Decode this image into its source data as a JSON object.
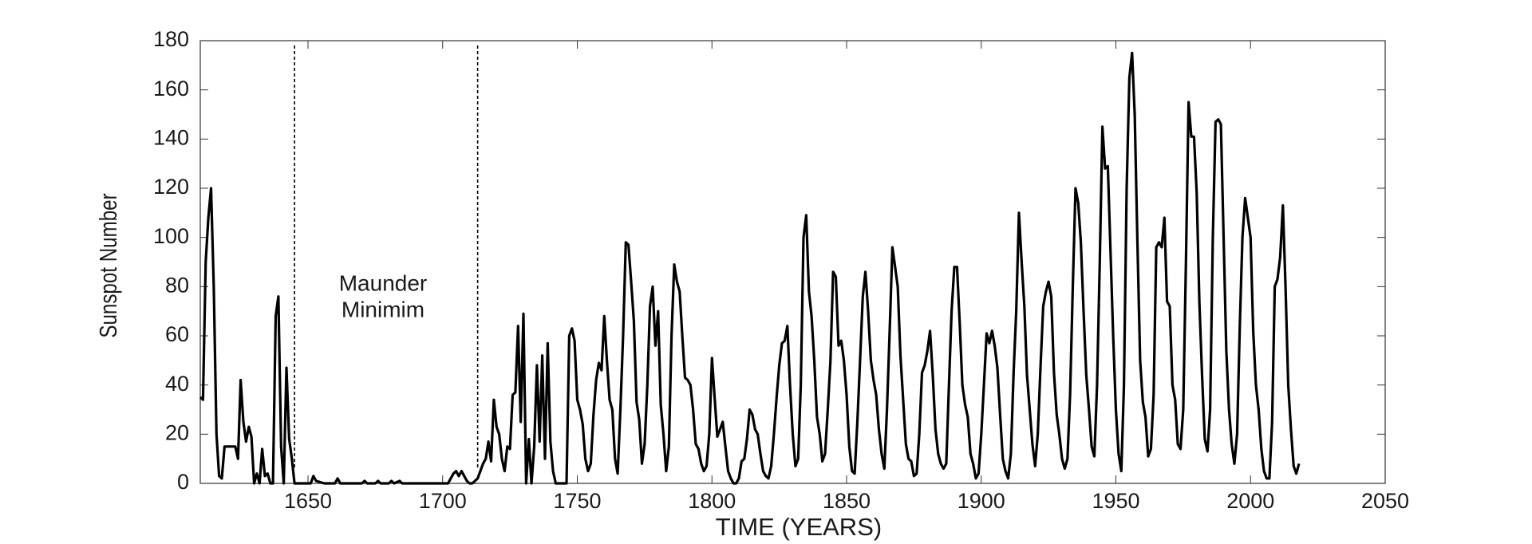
{
  "chart_data": {
    "type": "line",
    "ylabel": "Sunspot Number",
    "xlabel": "TIME (YEARS)",
    "annotation": [
      "Maunder",
      "Minimim"
    ],
    "xlim": [
      1610,
      2050
    ],
    "xticks": [
      1650,
      1700,
      1750,
      1800,
      1850,
      1900,
      1950,
      2000,
      2050
    ],
    "ylim": [
      0,
      180
    ],
    "yticks": [
      0,
      20,
      40,
      60,
      80,
      100,
      120,
      140,
      160,
      180
    ],
    "vlines": [
      1645,
      1713
    ],
    "x": [
      1610,
      1611,
      1612,
      1613,
      1614,
      1615,
      1616,
      1617,
      1618,
      1619,
      1620,
      1621,
      1622,
      1623,
      1624,
      1625,
      1626,
      1627,
      1628,
      1629,
      1630,
      1631,
      1632,
      1633,
      1634,
      1635,
      1636,
      1637,
      1638,
      1639,
      1640,
      1641,
      1642,
      1643,
      1644,
      1645,
      1650,
      1651,
      1652,
      1653,
      1656,
      1660,
      1661,
      1662,
      1670,
      1671,
      1672,
      1675,
      1676,
      1677,
      1680,
      1681,
      1682,
      1684,
      1685,
      1690,
      1700,
      1702,
      1703,
      1704,
      1705,
      1706,
      1707,
      1708,
      1709,
      1710,
      1711,
      1712,
      1713,
      1714,
      1715,
      1716,
      1717,
      1718,
      1719,
      1720,
      1721,
      1722,
      1723,
      1724,
      1725,
      1726,
      1727,
      1728,
      1729,
      1730,
      1731,
      1732,
      1733,
      1734,
      1735,
      1736,
      1737,
      1738,
      1739,
      1740,
      1741,
      1742,
      1743,
      1744,
      1745,
      1746,
      1747,
      1748,
      1749,
      1750,
      1751,
      1752,
      1753,
      1754,
      1755,
      1756,
      1757,
      1758,
      1759,
      1760,
      1761,
      1762,
      1763,
      1764,
      1765,
      1766,
      1767,
      1768,
      1769,
      1770,
      1771,
      1772,
      1773,
      1774,
      1775,
      1776,
      1777,
      1778,
      1779,
      1780,
      1781,
      1782,
      1783,
      1784,
      1785,
      1786,
      1787,
      1788,
      1789,
      1790,
      1791,
      1792,
      1793,
      1794,
      1795,
      1796,
      1797,
      1798,
      1799,
      1800,
      1801,
      1802,
      1803,
      1804,
      1805,
      1806,
      1807,
      1808,
      1809,
      1810,
      1811,
      1812,
      1813,
      1814,
      1815,
      1816,
      1817,
      1818,
      1819,
      1820,
      1821,
      1822,
      1823,
      1824,
      1825,
      1826,
      1827,
      1828,
      1829,
      1830,
      1831,
      1832,
      1833,
      1834,
      1835,
      1836,
      1837,
      1838,
      1839,
      1840,
      1841,
      1842,
      1843,
      1844,
      1845,
      1846,
      1847,
      1848,
      1849,
      1850,
      1851,
      1852,
      1853,
      1854,
      1855,
      1856,
      1857,
      1858,
      1859,
      1860,
      1861,
      1862,
      1863,
      1864,
      1865,
      1866,
      1867,
      1868,
      1869,
      1870,
      1871,
      1872,
      1873,
      1874,
      1875,
      1876,
      1877,
      1878,
      1879,
      1880,
      1881,
      1882,
      1883,
      1884,
      1885,
      1886,
      1887,
      1888,
      1889,
      1890,
      1891,
      1892,
      1893,
      1894,
      1895,
      1896,
      1897,
      1898,
      1899,
      1900,
      1901,
      1902,
      1903,
      1904,
      1905,
      1906,
      1907,
      1908,
      1909,
      1910,
      1911,
      1912,
      1913,
      1914,
      1915,
      1916,
      1917,
      1918,
      1919,
      1920,
      1921,
      1922,
      1923,
      1924,
      1925,
      1926,
      1927,
      1928,
      1929,
      1930,
      1931,
      1932,
      1933,
      1934,
      1935,
      1936,
      1937,
      1938,
      1939,
      1940,
      1941,
      1942,
      1943,
      1944,
      1945,
      1946,
      1947,
      1948,
      1949,
      1950,
      1951,
      1952,
      1953,
      1954,
      1955,
      1956,
      1957,
      1958,
      1959,
      1960,
      1961,
      1962,
      1963,
      1964,
      1965,
      1966,
      1967,
      1968,
      1969,
      1970,
      1971,
      1972,
      1973,
      1974,
      1975,
      1976,
      1977,
      1978,
      1979,
      1980,
      1981,
      1982,
      1983,
      1984,
      1985,
      1986,
      1987,
      1988,
      1989,
      1990,
      1991,
      1992,
      1993,
      1994,
      1995,
      1996,
      1997,
      1998,
      1999,
      2000,
      2001,
      2002,
      2003,
      2004,
      2005,
      2006,
      2007,
      2008,
      2009,
      2010,
      2011,
      2012,
      2013,
      2014,
      2015,
      2016,
      2017,
      2018
    ],
    "series": [
      {
        "color": "#000000",
        "values": [
          35,
          34,
          90,
          108,
          120,
          80,
          20,
          3,
          2,
          15,
          15,
          15,
          15,
          15,
          10,
          42,
          25,
          17,
          23,
          19,
          0,
          4,
          0,
          14,
          3,
          4,
          0,
          0,
          68,
          76,
          15,
          0,
          47,
          18,
          10,
          0,
          0,
          0,
          3,
          1,
          0,
          0,
          2,
          0,
          0,
          1,
          0,
          0,
          1,
          0,
          0,
          1,
          0,
          1,
          0,
          0,
          0,
          0,
          2,
          4,
          5,
          3,
          5,
          3,
          1,
          0,
          0,
          1,
          2,
          5,
          8,
          10,
          17,
          9,
          34,
          23,
          20,
          10,
          5,
          15,
          14,
          36,
          37,
          64,
          25,
          69,
          0,
          18,
          0,
          15,
          48,
          17,
          52,
          10,
          57,
          17,
          5,
          0,
          0,
          0,
          0,
          0,
          60,
          63,
          58,
          34,
          30,
          24,
          10,
          5,
          8,
          28,
          42,
          49,
          46,
          68,
          50,
          34,
          30,
          10,
          4,
          30,
          60,
          98,
          97,
          82,
          66,
          33,
          26,
          8,
          16,
          40,
          72,
          80,
          56,
          70,
          32,
          20,
          5,
          15,
          60,
          89,
          82,
          78,
          60,
          43,
          42,
          40,
          30,
          16,
          14,
          8,
          5,
          7,
          20,
          51,
          35,
          19,
          22,
          25,
          15,
          5,
          2,
          0,
          0,
          2,
          9,
          10,
          18,
          30,
          28,
          22,
          20,
          12,
          5,
          3,
          2,
          7,
          20,
          35,
          48,
          57,
          58,
          64,
          40,
          20,
          7,
          10,
          40,
          100,
          109,
          78,
          68,
          50,
          27,
          20,
          9,
          12,
          30,
          50,
          86,
          84,
          56,
          58,
          50,
          36,
          15,
          5,
          4,
          25,
          50,
          76,
          86,
          70,
          50,
          42,
          36,
          22,
          12,
          6,
          30,
          62,
          96,
          88,
          80,
          52,
          34,
          16,
          10,
          9,
          3,
          4,
          20,
          45,
          48,
          54,
          62,
          44,
          22,
          12,
          8,
          6,
          8,
          40,
          70,
          88,
          88,
          65,
          40,
          32,
          27,
          12,
          8,
          2,
          4,
          20,
          40,
          61,
          57,
          62,
          56,
          47,
          28,
          10,
          5,
          2,
          12,
          45,
          70,
          110,
          90,
          72,
          44,
          30,
          16,
          7,
          20,
          47,
          72,
          78,
          82,
          76,
          45,
          28,
          20,
          10,
          6,
          10,
          36,
          80,
          120,
          114,
          98,
          70,
          44,
          30,
          15,
          11,
          40,
          90,
          145,
          128,
          129,
          94,
          60,
          30,
          12,
          5,
          40,
          120,
          165,
          175,
          150,
          98,
          50,
          33,
          27,
          11,
          14,
          36,
          96,
          98,
          96,
          108,
          74,
          72,
          40,
          34,
          16,
          14,
          30,
          90,
          155,
          141,
          141,
          118,
          74,
          44,
          18,
          13,
          30,
          100,
          147,
          148,
          146,
          100,
          54,
          30,
          16,
          8,
          20,
          64,
          100,
          116,
          108,
          100,
          62,
          40,
          30,
          14,
          5,
          2,
          2,
          25,
          80,
          83,
          92,
          113,
          80,
          40,
          22,
          7,
          4,
          8
        ]
      }
    ]
  }
}
